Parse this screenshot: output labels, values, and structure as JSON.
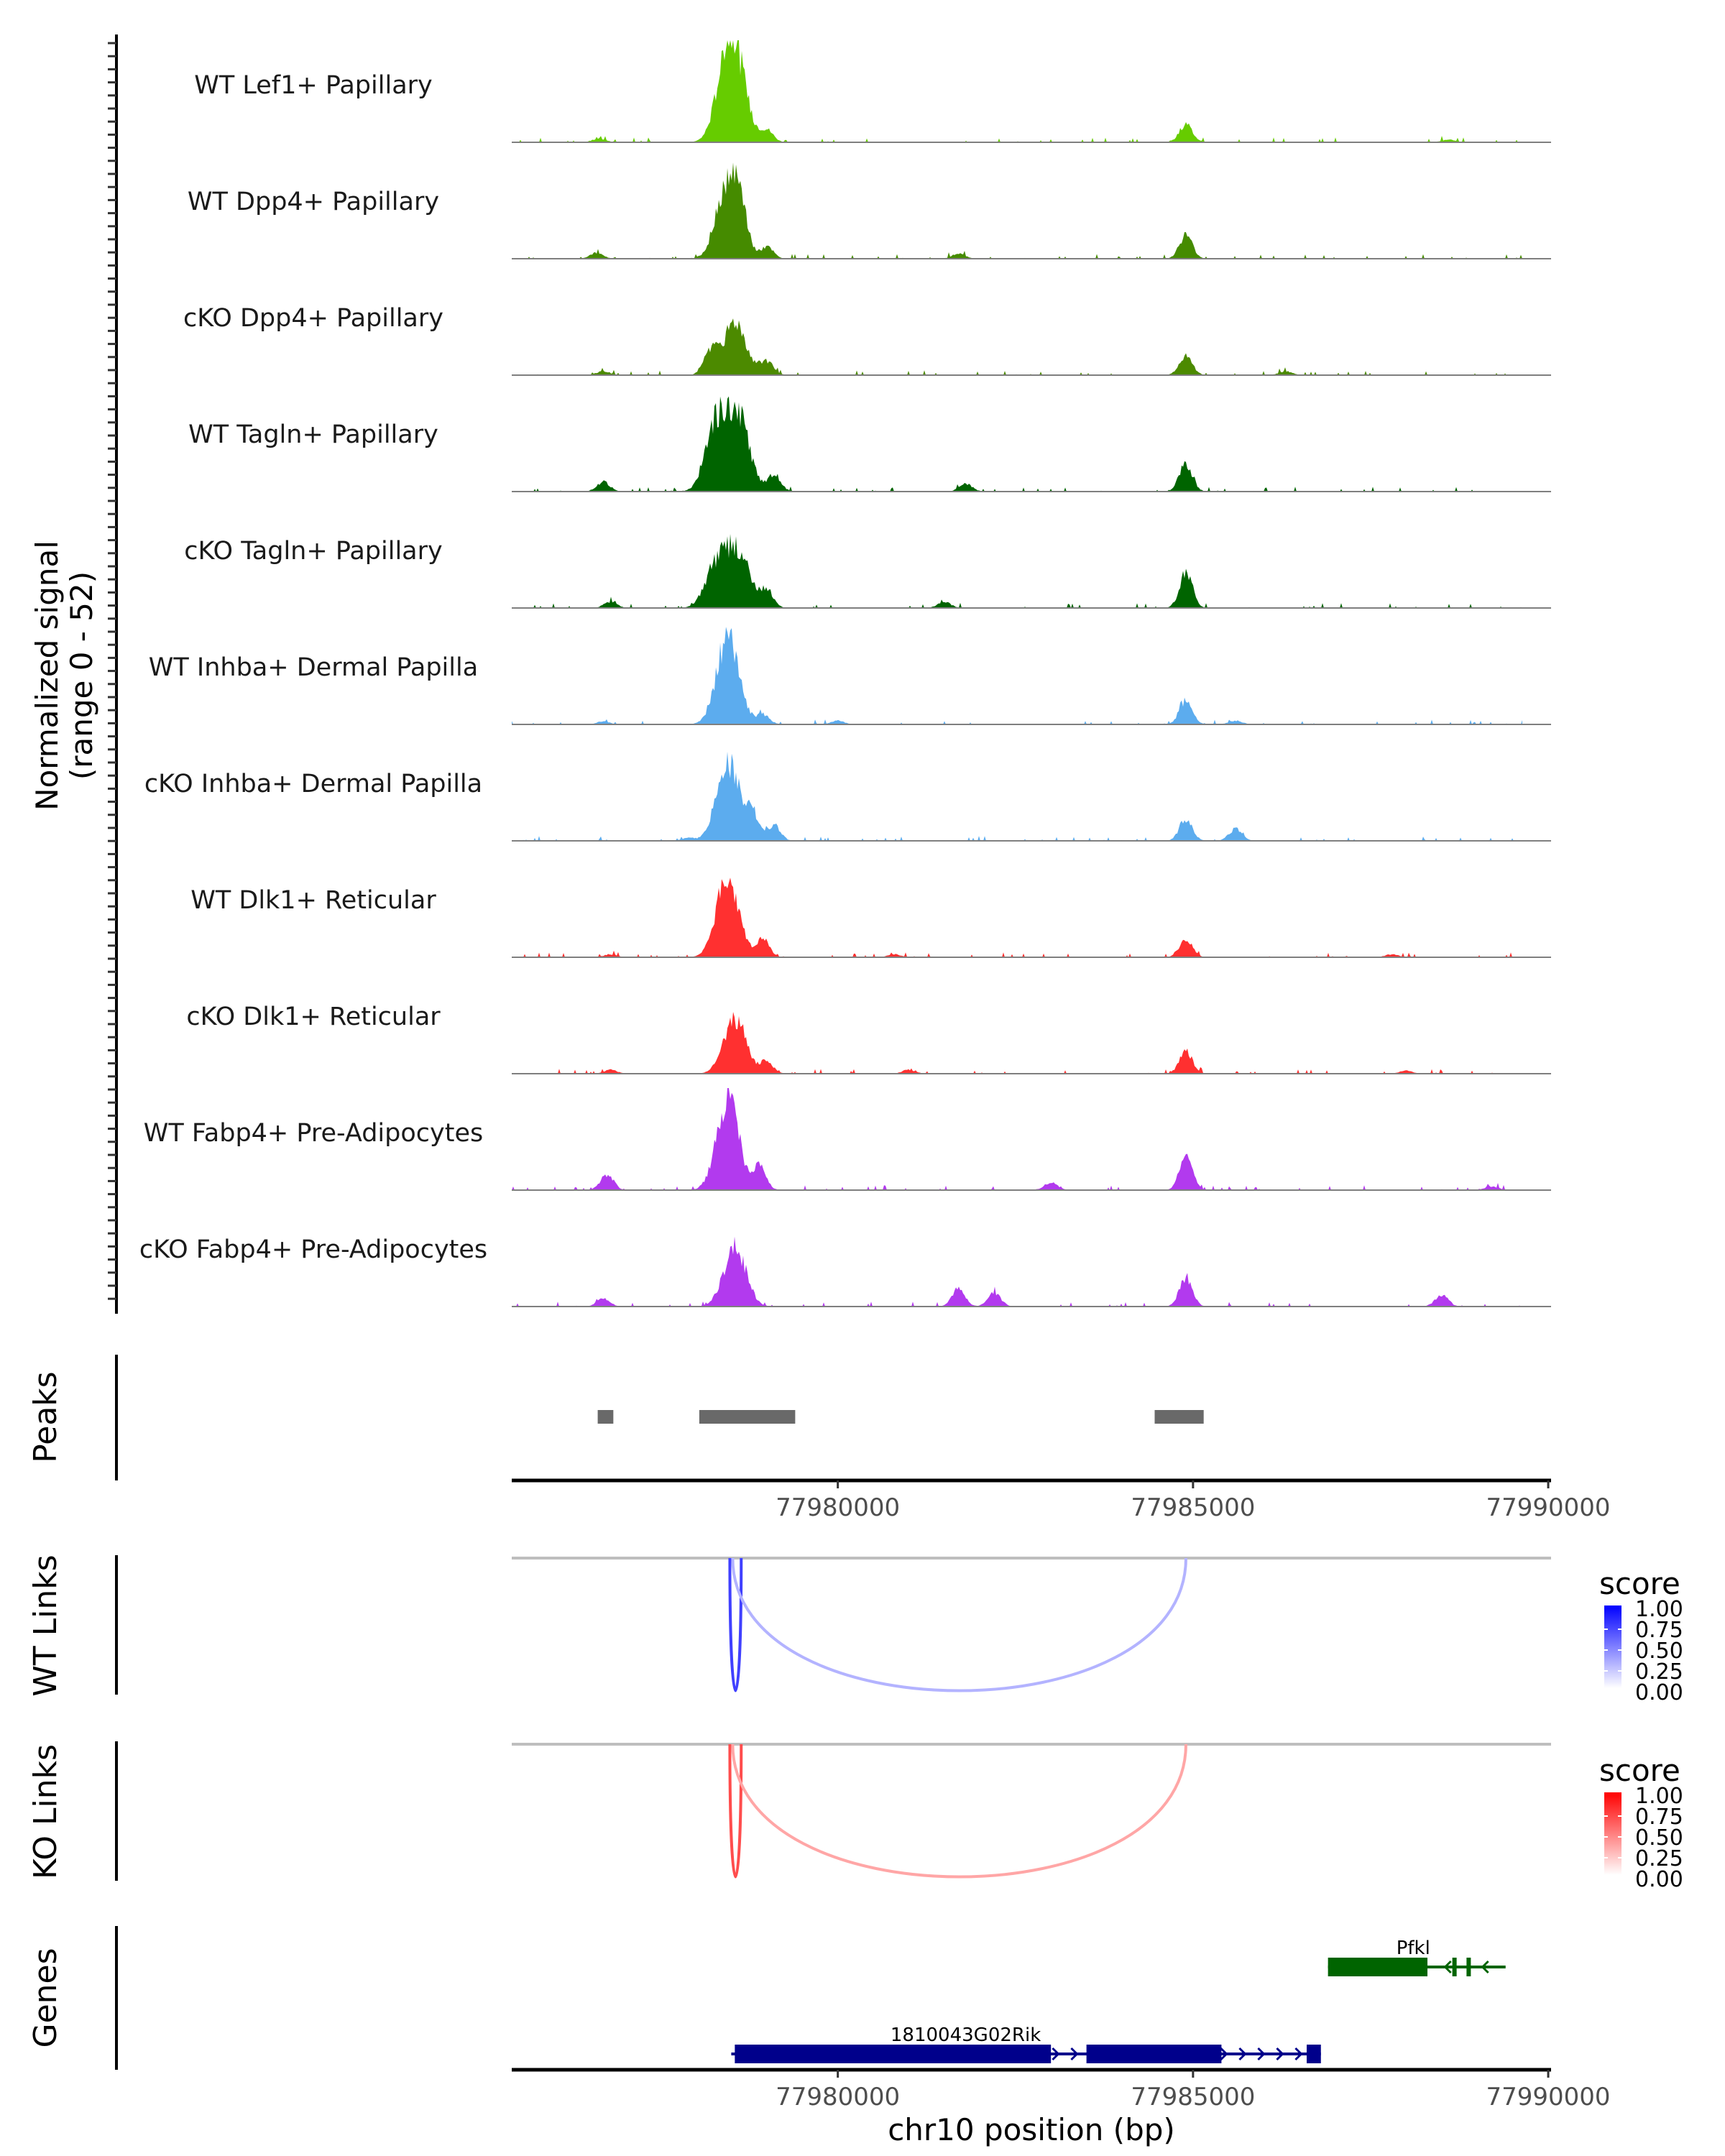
{
  "chart_data": {
    "type": "area",
    "title": "",
    "chromosome": "chr10",
    "xlabel": "chr10 position (bp)",
    "ylabel": "Normalized signal\n(range 0 - 52)",
    "ylabel_line1": "Normalized signal",
    "ylabel_line2": "(range 0 - 52)",
    "xlim": [
      77975410,
      77990040
    ],
    "ylim": [
      0,
      52
    ],
    "x_ticks": [
      77980000,
      77985000,
      77990000
    ],
    "x_tick_labels": [
      "77980000",
      "77985000",
      "77990000"
    ],
    "coverage_tracks": [
      {
        "name": "WT Lef1+ Papillary",
        "color": "#66CC00",
        "peaks": [
          [
            77976640,
            2
          ],
          [
            77978450,
            40
          ],
          [
            77978600,
            22
          ],
          [
            77979000,
            6
          ],
          [
            77984900,
            9
          ],
          [
            77988600,
            1.5
          ]
        ]
      },
      {
        "name": "WT Dpp4+ Papillary",
        "color": "#458B00",
        "peaks": [
          [
            77976600,
            3
          ],
          [
            77978450,
            40
          ],
          [
            77978650,
            15
          ],
          [
            77979000,
            6
          ],
          [
            77981700,
            2.5
          ],
          [
            77984900,
            12
          ]
        ]
      },
      {
        "name": "cKO Dpp4+ Papillary",
        "color": "#4C8A00",
        "peaks": [
          [
            77976700,
            2
          ],
          [
            77978200,
            12
          ],
          [
            77978550,
            27
          ],
          [
            77979000,
            7
          ],
          [
            77984900,
            10
          ],
          [
            77986300,
            2
          ]
        ]
      },
      {
        "name": "WT Tagln+ Papillary",
        "color": "#006400",
        "peaks": [
          [
            77976700,
            5
          ],
          [
            77978300,
            34
          ],
          [
            77978600,
            36
          ],
          [
            77979100,
            9
          ],
          [
            77981800,
            4
          ],
          [
            77984900,
            14
          ]
        ]
      },
      {
        "name": "cKO Tagln+ Papillary",
        "color": "#006400",
        "peaks": [
          [
            77976800,
            3
          ],
          [
            77978300,
            22
          ],
          [
            77978600,
            28
          ],
          [
            77979000,
            9
          ],
          [
            77981500,
            3
          ],
          [
            77984900,
            17
          ]
        ]
      },
      {
        "name": "WT Inhba+ Dermal Papilla",
        "color": "#5CACEE",
        "peaks": [
          [
            77976700,
            1.5
          ],
          [
            77978450,
            44
          ],
          [
            77978950,
            5
          ],
          [
            77980000,
            2
          ],
          [
            77984900,
            12
          ],
          [
            77985600,
            2
          ]
        ]
      },
      {
        "name": "cKO Inhba+ Dermal Papilla",
        "color": "#5CACEE",
        "peaks": [
          [
            77977900,
            1.5
          ],
          [
            77978450,
            40
          ],
          [
            77978800,
            14
          ],
          [
            77979100,
            8
          ],
          [
            77984900,
            11
          ],
          [
            77985600,
            6
          ]
        ]
      },
      {
        "name": "WT Dlk1+ Reticular",
        "color": "#FF3030",
        "peaks": [
          [
            77976800,
            1.5
          ],
          [
            77978450,
            41
          ],
          [
            77978950,
            9
          ],
          [
            77980800,
            1.5
          ],
          [
            77984900,
            9
          ],
          [
            77987800,
            1.5
          ]
        ]
      },
      {
        "name": "cKO Dlk1+ Reticular",
        "color": "#FF3030",
        "peaks": [
          [
            77976800,
            2
          ],
          [
            77978550,
            28
          ],
          [
            77979000,
            6
          ],
          [
            77981000,
            2
          ],
          [
            77984900,
            11
          ],
          [
            77988000,
            1.5
          ]
        ]
      },
      {
        "name": "WT Fabp4+ Pre-Adipocytes",
        "color": "#B23AEE",
        "peaks": [
          [
            77976750,
            8
          ],
          [
            77978450,
            46
          ],
          [
            77978900,
            12
          ],
          [
            77983000,
            4
          ],
          [
            77984900,
            17
          ],
          [
            77989200,
            2
          ]
        ]
      },
      {
        "name": "cKO Fabp4+ Pre-Adipocytes",
        "color": "#B23AEE",
        "peaks": [
          [
            77976700,
            4
          ],
          [
            77978550,
            30
          ],
          [
            77981700,
            9
          ],
          [
            77982200,
            7
          ],
          [
            77984900,
            15
          ],
          [
            77988500,
            6
          ]
        ]
      }
    ],
    "peaks_track": {
      "label": "Peaks",
      "color": "#696969",
      "regions": [
        [
          77976620,
          77976840
        ],
        [
          77978050,
          77979400
        ],
        [
          77984460,
          77985150
        ]
      ]
    },
    "link_tracks": [
      {
        "label": "WT Links",
        "legend_title": "score",
        "color_low": "#FFFFFF",
        "color_high": "#0000FF",
        "legend_ticks": [
          "1.00",
          "0.75",
          "0.50",
          "0.25",
          "0.00"
        ],
        "links": [
          {
            "start": 77978480,
            "end": 77978640,
            "score": 0.75
          },
          {
            "start": 77978520,
            "end": 77984900,
            "score": 0.3
          }
        ]
      },
      {
        "label": "KO Links",
        "legend_title": "score",
        "color_low": "#FFFFFF",
        "color_high": "#FF0000",
        "legend_ticks": [
          "1.00",
          "0.75",
          "0.50",
          "0.25",
          "0.00"
        ],
        "links": [
          {
            "start": 77978480,
            "end": 77978640,
            "score": 0.7
          },
          {
            "start": 77978520,
            "end": 77984900,
            "score": 0.35
          }
        ]
      }
    ],
    "genes_track": {
      "label": "Genes",
      "genes": [
        {
          "name": "Pfkl",
          "strand": "-",
          "color": "#006400",
          "start": 77986900,
          "end": 77989400,
          "exons": [
            [
              77986900,
              77988300
            ],
            [
              77988650,
              77988700
            ],
            [
              77988850,
              77988900
            ]
          ]
        },
        {
          "name": "1810043G02Rik",
          "strand": "+",
          "color": "#00008B",
          "start": 77978500,
          "end": 77986800,
          "exons": [
            [
              77978550,
              77983000
            ],
            [
              77983500,
              77985400
            ],
            [
              77986600,
              77986800
            ]
          ]
        }
      ]
    }
  }
}
